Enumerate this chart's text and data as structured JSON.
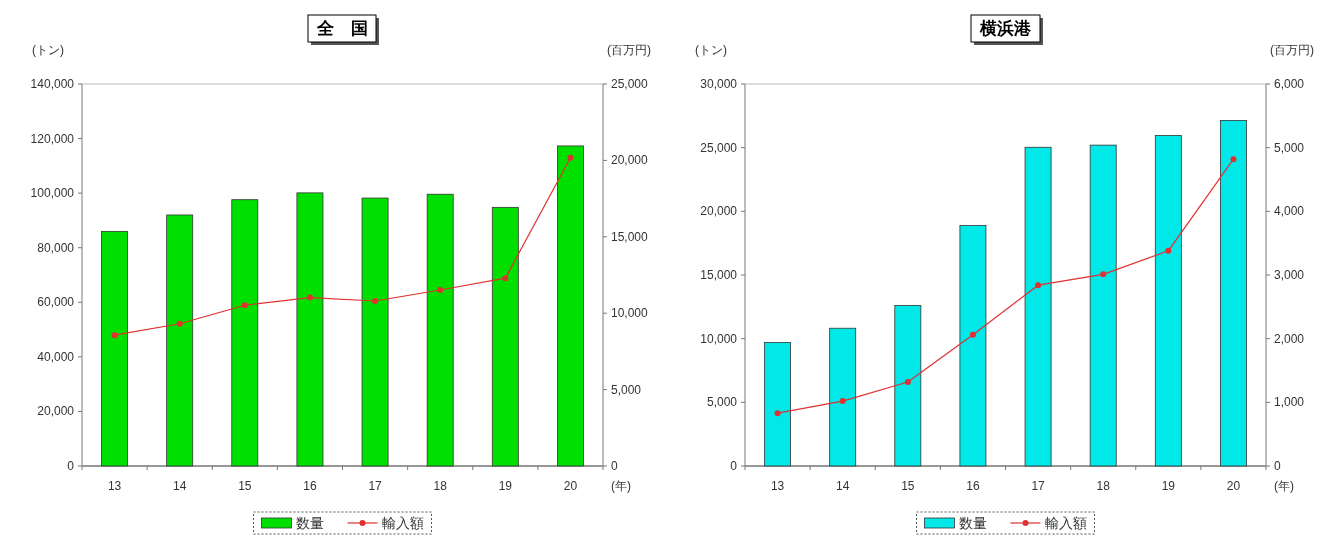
{
  "chart_data": [
    {
      "type": "bar",
      "title": "全　国",
      "xlabel": "(年)",
      "ylabel": "(トン)",
      "y2label": "(百万円)",
      "categories": [
        "13",
        "14",
        "15",
        "16",
        "17",
        "18",
        "19",
        "20"
      ],
      "series": [
        {
          "name": "数量",
          "color": "#00e000",
          "values": [
            86000,
            92000,
            97600,
            100100,
            98200,
            99600,
            94800,
            117300
          ]
        },
        {
          "name": "輸入額",
          "type": "line",
          "axis": "y2",
          "color": "#e03030",
          "marker": "circle",
          "values": [
            8560,
            9310,
            10520,
            11020,
            10800,
            11520,
            12290,
            20170
          ]
        }
      ],
      "ylim": [
        0,
        140000
      ],
      "yticks": [
        0,
        {
          "value": 20000,
          "label": "20,000"
        },
        {
          "value": 40000,
          "label": "40,000"
        },
        {
          "value": 60000,
          "label": "60,000"
        },
        {
          "value": 80000,
          "label": "80,000"
        },
        {
          "value": 100000,
          "label": "100,000"
        },
        {
          "value": 120000,
          "label": "120,000"
        },
        {
          "value": 140000,
          "label": "140,000"
        }
      ],
      "y2lim": [
        0,
        25000
      ],
      "y2ticks": [
        0,
        {
          "value": 5000,
          "label": "5,000"
        },
        {
          "value": 10000,
          "label": "10,000"
        },
        {
          "value": 15000,
          "label": "15,000"
        },
        {
          "value": 20000,
          "label": "20,000"
        },
        {
          "value": 25000,
          "label": "25,000"
        }
      ],
      "legend": "bottom"
    },
    {
      "type": "bar",
      "title": "横浜港",
      "xlabel": "(年)",
      "ylabel": "(トン)",
      "y2label": "(百万円)",
      "categories": [
        "13",
        "14",
        "15",
        "16",
        "17",
        "18",
        "19",
        "20"
      ],
      "series": [
        {
          "name": "数量",
          "color": "#00e8e8",
          "values": [
            9700,
            10820,
            12600,
            18880,
            25030,
            25200,
            25950,
            27140
          ]
        },
        {
          "name": "輸入額",
          "type": "line",
          "axis": "y2",
          "color": "#e03030",
          "marker": "circle",
          "values": [
            830,
            1020,
            1320,
            2060,
            2840,
            3010,
            3380,
            4820
          ]
        }
      ],
      "ylim": [
        0,
        30000
      ],
      "yticks": [
        0,
        {
          "value": 5000,
          "label": "5,000"
        },
        {
          "value": 10000,
          "label": "10,000"
        },
        {
          "value": 15000,
          "label": "15,000"
        },
        {
          "value": 20000,
          "label": "20,000"
        },
        {
          "value": 25000,
          "label": "25,000"
        },
        {
          "value": 30000,
          "label": "30,000"
        }
      ],
      "y2lim": [
        0,
        6000
      ],
      "y2ticks": [
        0,
        {
          "value": 1000,
          "label": "1,000"
        },
        {
          "value": 2000,
          "label": "2,000"
        },
        {
          "value": 3000,
          "label": "3,000"
        },
        {
          "value": 4000,
          "label": "4,000"
        },
        {
          "value": 5000,
          "label": "5,000"
        },
        {
          "value": 6000,
          "label": "6,000"
        }
      ],
      "legend": "bottom"
    }
  ]
}
